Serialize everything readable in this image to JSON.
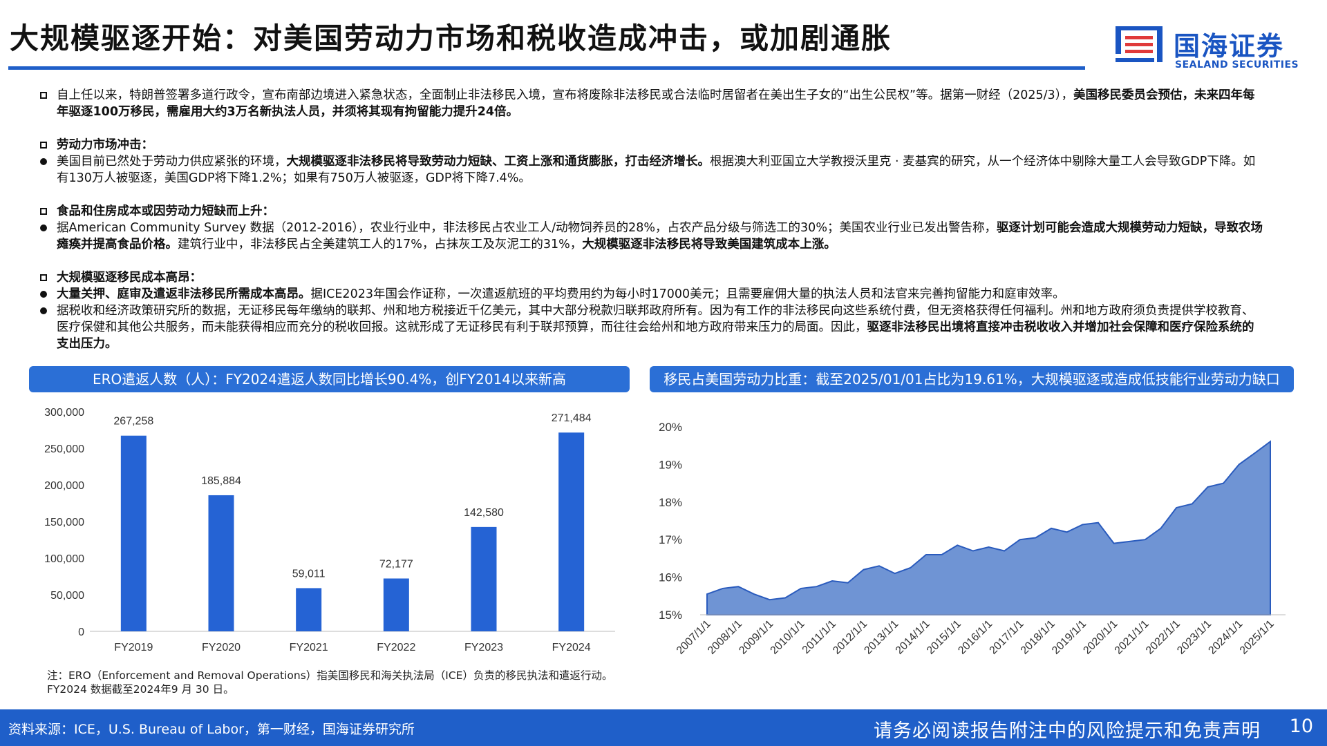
{
  "header": {
    "title": "大规模驱逐开始：对美国劳动力市场和税收造成冲击，或加剧通胀",
    "logo_cn": "国海证券",
    "logo_en": "SEALAND SECURITIES"
  },
  "paragraphs": [
    {
      "mark": "square",
      "segments": [
        {
          "t": "自上任以来，特朗普签署多道行政令，宣布南部边境进入紧急状态，全面制止非法移民入境，宣布将废除非法移民或合法临时居留者在美出生子女的“出生公民权”等。据第一财经（2025/3），",
          "b": false
        },
        {
          "t": "美国移民委员会预估，未来四年每年驱逐100万移民，需雇用大约3万名新执法人员，并须将其现有拘留能力提升24倍。",
          "b": true
        }
      ]
    },
    {
      "mark": "gap"
    },
    {
      "mark": "square",
      "segments": [
        {
          "t": "劳动力市场冲击：",
          "b": true
        }
      ]
    },
    {
      "mark": "dot",
      "segments": [
        {
          "t": "美国目前已然处于劳动力供应紧张的环境，",
          "b": false
        },
        {
          "t": "大规模驱逐非法移民将导致劳动力短缺、工资上涨和通货膨胀，打击经济增长。",
          "b": true
        },
        {
          "t": "根据澳大利亚国立大学教授沃里克 · 麦基宾的研究，从一个经济体中剔除大量工人会导致GDP下降。如有130万人被驱逐，美国GDP将下降1.2%；如果有750万人被驱逐，GDP将下降7.4%。",
          "b": false
        }
      ]
    },
    {
      "mark": "gap"
    },
    {
      "mark": "square",
      "segments": [
        {
          "t": "食品和住房成本或因劳动力短缺而上升：",
          "b": true
        }
      ]
    },
    {
      "mark": "dot",
      "segments": [
        {
          "t": "据American Community Survey 数据（2012-2016），农业行业中，非法移民占农业工人/动物饲养员的28%，占农产品分级与筛选工的30%；美国农业行业已发出警告称，",
          "b": false
        },
        {
          "t": "驱逐计划可能会造成大规模劳动力短缺，导致农场瘫痪并提高食品价格。",
          "b": true
        },
        {
          "t": "建筑行业中，非法移民占全美建筑工人的17%，占抹灰工及灰泥工的31%，",
          "b": false
        },
        {
          "t": "大规模驱逐非法移民将导致美国建筑成本上涨。",
          "b": true
        }
      ]
    },
    {
      "mark": "gap"
    },
    {
      "mark": "square",
      "segments": [
        {
          "t": "大规模驱逐移民成本高昂：",
          "b": true
        }
      ]
    },
    {
      "mark": "dot",
      "segments": [
        {
          "t": "大量关押、庭审及遣返非法移民所需成本高昂。",
          "b": true
        },
        {
          "t": "据ICE2023年国会作证称，一次遣返航班的平均费用约为每小时17000美元；且需要雇佣大量的执法人员和法官来完善拘留能力和庭审效率。",
          "b": false
        }
      ]
    },
    {
      "mark": "dot",
      "segments": [
        {
          "t": "据税收和经济政策研究所的数据，无证移民每年缴纳的联邦、州和地方税接近千亿美元，其中大部分税款归联邦政府所有。因为有工作的非法移民向这些系统付费，但无资格获得任何福利。州和地方政府须负责提供学校教育、医疗保健和其他公共服务，而未能获得相应而充分的税收回报。这就形成了无证移民有利于联邦预算，而往往会给州和地方政府带来压力的局面。因此，",
          "b": false
        },
        {
          "t": "驱逐非法移民出境将直接冲击税收收入并增加社会保障和医疗保险系统的支出压力。",
          "b": true
        }
      ]
    }
  ],
  "left_chart": {
    "banner": "ERO遣返人数（人）：FY2024遣返人数同比增长90.4%，创FY2014以来新高",
    "note": "注：ERO（Enforcement and Removal Operations）指美国移民和海关执法局（ICE）负责的移民执法和遣返行动。FY2024 数据截至2024年9 月 30 日。"
  },
  "right_chart": {
    "banner": "移民占美国劳动力比重：截至2025/01/01占比为19.61%，大规模驱逐或造成低技能行业劳动力缺口"
  },
  "chart_data": [
    {
      "type": "bar",
      "categories": [
        "FY2019",
        "FY2020",
        "FY2021",
        "FY2022",
        "FY2023",
        "FY2024"
      ],
      "values": [
        267258,
        185884,
        59011,
        72177,
        142580,
        271484
      ],
      "data_labels": [
        "267,258",
        "185,884",
        "59,011",
        "72,177",
        "142,580",
        "271,484"
      ],
      "yticks": [
        "0",
        "50,000",
        "100,000",
        "150,000",
        "200,000",
        "250,000",
        "300,000"
      ],
      "ylim": [
        0,
        300000
      ],
      "color": "#2563d4",
      "grid": false
    },
    {
      "type": "area",
      "x_ticks": [
        "2007/1/1",
        "2008/1/1",
        "2009/1/1",
        "2010/1/1",
        "2011/1/1",
        "2012/1/1",
        "2013/1/1",
        "2014/1/1",
        "2015/1/1",
        "2016/1/1",
        "2017/1/1",
        "2018/1/1",
        "2019/1/1",
        "2020/1/1",
        "2021/1/1",
        "2022/1/1",
        "2023/1/1",
        "2024/1/1",
        "2025/1/1"
      ],
      "yticks": [
        "15%",
        "16%",
        "17%",
        "18%",
        "19%",
        "20%"
      ],
      "ylim": [
        15,
        20
      ],
      "x": [
        2007.0,
        2007.5,
        2008.0,
        2008.5,
        2009.0,
        2009.5,
        2010.0,
        2010.5,
        2011.0,
        2011.5,
        2012.0,
        2012.5,
        2013.0,
        2013.5,
        2014.0,
        2014.5,
        2015.0,
        2015.5,
        2016.0,
        2016.5,
        2017.0,
        2017.5,
        2018.0,
        2018.5,
        2019.0,
        2019.5,
        2020.0,
        2020.5,
        2021.0,
        2021.5,
        2022.0,
        2022.5,
        2023.0,
        2023.5,
        2024.0,
        2024.5,
        2025.0
      ],
      "values": [
        15.55,
        15.7,
        15.75,
        15.55,
        15.4,
        15.45,
        15.7,
        15.75,
        15.9,
        15.85,
        16.2,
        16.3,
        16.1,
        16.25,
        16.6,
        16.6,
        16.85,
        16.7,
        16.8,
        16.7,
        17.0,
        17.05,
        17.3,
        17.2,
        17.4,
        17.45,
        16.9,
        16.95,
        17.0,
        17.3,
        17.85,
        17.95,
        18.4,
        18.5,
        19.0,
        19.3,
        19.61
      ],
      "color": "#6f94d4",
      "grid": false
    }
  ],
  "footer": {
    "source": "资料来源：ICE，U.S. Bureau of Labor，第一财经，国海证券研究所",
    "disclaimer": "请务必阅读报告附注中的风险提示和免责声明",
    "page": "10"
  }
}
